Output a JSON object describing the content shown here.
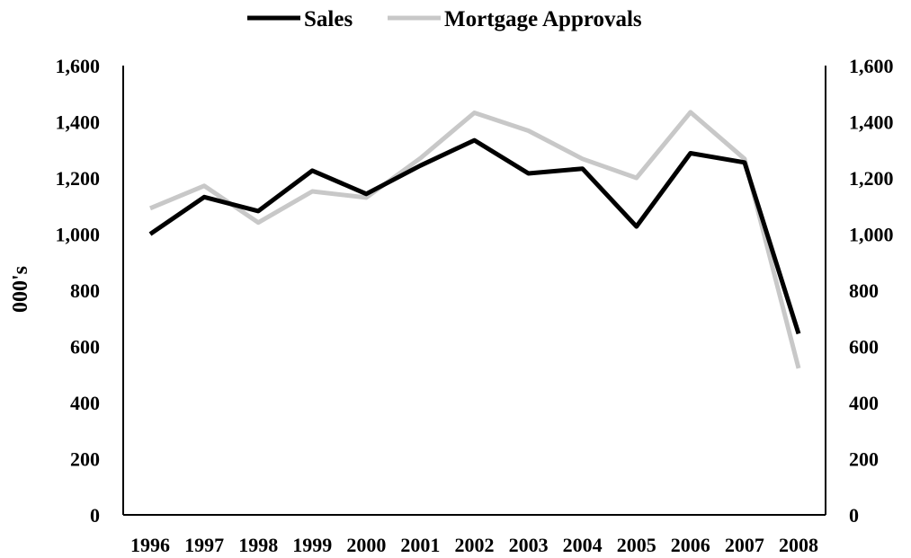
{
  "chart_data": {
    "type": "line",
    "title": "",
    "xlabel": "",
    "ylabel": "000's",
    "ylim": [
      0,
      1600
    ],
    "yticks": [
      "0",
      "200",
      "400",
      "600",
      "800",
      "1,000",
      "1,200",
      "1,400",
      "1,600"
    ],
    "y2ticks": [
      "0",
      "200",
      "400",
      "600",
      "800",
      "1,000",
      "1,200",
      "1,400",
      "1,600"
    ],
    "x": [
      "1996",
      "1997",
      "1998",
      "1999",
      "2000",
      "2001",
      "2002",
      "2003",
      "2004",
      "2005",
      "2006",
      "2007",
      "2008"
    ],
    "series": [
      {
        "name": "Sales",
        "color": "#000000",
        "values": [
          1000,
          1132,
          1082,
          1226,
          1143,
          1244,
          1334,
          1216,
          1233,
          1027,
          1288,
          1255,
          645
        ]
      },
      {
        "name": "Mortgage Approvals",
        "color": "#c8c8c8",
        "values": [
          1092,
          1172,
          1041,
          1152,
          1130,
          1270,
          1432,
          1368,
          1268,
          1200,
          1434,
          1268,
          522
        ]
      }
    ],
    "legend_position": "top",
    "grid": false
  }
}
